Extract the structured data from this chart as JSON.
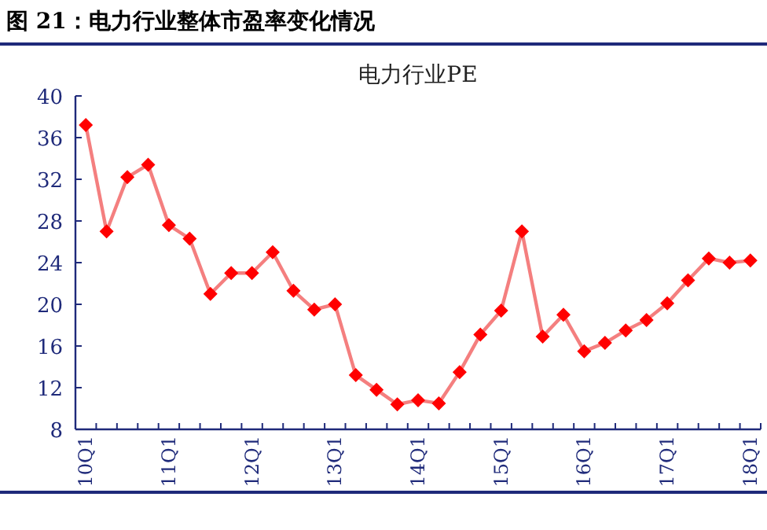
{
  "chart_data": {
    "type": "line",
    "title": "图 21：电力行业整体市盈率变化情况",
    "subtitle": "电力行业PE",
    "categories": [
      "10Q1",
      null,
      null,
      null,
      "11Q1",
      null,
      null,
      null,
      "12Q1",
      null,
      null,
      null,
      "13Q1",
      null,
      null,
      null,
      "14Q1",
      null,
      null,
      null,
      "15Q1",
      null,
      null,
      null,
      "16Q1",
      null,
      null,
      null,
      "17Q1",
      null,
      null,
      null,
      "18Q1"
    ],
    "values": [
      37.2,
      27.0,
      32.2,
      33.4,
      27.6,
      26.3,
      21.0,
      23.0,
      23.0,
      25.0,
      21.3,
      19.5,
      20.0,
      13.2,
      11.8,
      10.4,
      10.8,
      10.5,
      13.5,
      17.1,
      19.4,
      27.0,
      16.9,
      19.0,
      15.5,
      16.3,
      17.5,
      18.5,
      20.1,
      22.3,
      24.4,
      24.0,
      24.2
    ],
    "color": "#f47f7f",
    "marker": "diamond",
    "colors": [
      "#ff0000",
      "#ff0000",
      "#ff0000",
      "#ff0000",
      "#ff0000",
      "#ff0000",
      "#ff0000",
      "#ff0000",
      "#ff0000",
      "#ff0000",
      "#ff0000",
      "#ff0000",
      "#ff0000",
      "#ff0000",
      "#ff0000",
      "#ff0000",
      "#ff0000",
      "#ff0000",
      "#ff0000",
      "#ff0000",
      "#ff0000",
      "#ff0000",
      "#ff0000",
      "#ff0000",
      "#ff0000",
      "#ff0000",
      "#ff0000",
      "#ff0000",
      "#ff0000",
      "#ff0000",
      "#ff0000",
      "#ff0000",
      "#ff0000"
    ],
    "ylim": [
      8,
      40
    ],
    "yticks": [
      8,
      12,
      16,
      20,
      24,
      28,
      32,
      36,
      40
    ]
  }
}
